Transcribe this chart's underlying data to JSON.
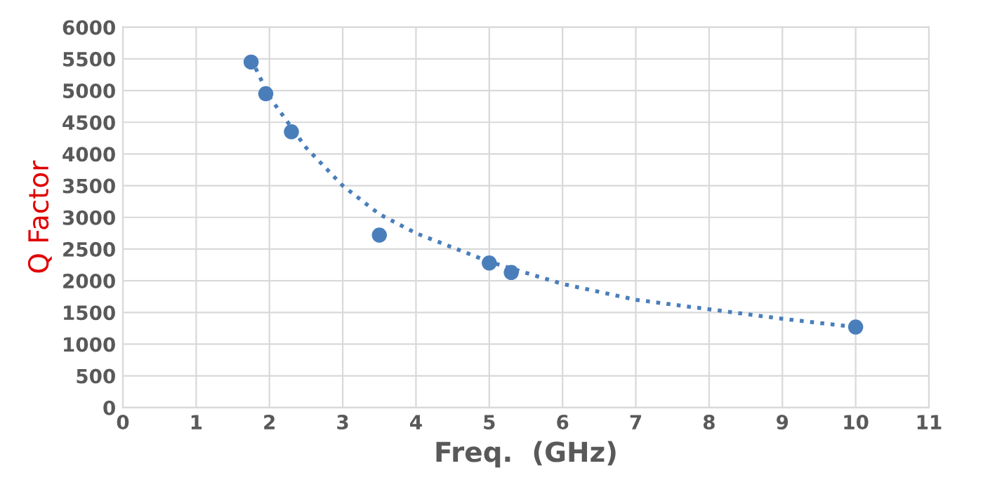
{
  "chart_data": {
    "type": "scatter",
    "xlabel": "Freq.  (GHz)",
    "ylabel": "Q Factor",
    "xlim": [
      0,
      11
    ],
    "xticks": [
      0,
      1,
      2,
      3,
      4,
      5,
      6,
      7,
      8,
      9,
      10,
      11
    ],
    "ylim": [
      0,
      6000
    ],
    "yticks": [
      0,
      500,
      1000,
      1500,
      2000,
      2500,
      3000,
      3500,
      4000,
      4500,
      5000,
      5500,
      6000
    ],
    "grid": true,
    "legend": false,
    "series": [
      {
        "color": "#4a7ebb",
        "marker": "circle",
        "x": [
          1.75,
          1.95,
          2.3,
          3.5,
          5,
          5.3,
          10
        ],
        "values": [
          5450,
          4950,
          4350,
          2720,
          2280,
          2130,
          1270
        ]
      },
      {
        "type": "line",
        "color": "#4a7ebb",
        "line_style": "dotted",
        "marker": "none",
        "x": [
          1.75,
          2,
          2.5,
          3,
          3.5,
          4,
          5,
          6,
          7,
          8,
          9,
          10
        ],
        "values": [
          5500,
          4900,
          4100,
          3500,
          3050,
          2750,
          2300,
          1950,
          1700,
          1550,
          1400,
          1270
        ]
      }
    ]
  }
}
